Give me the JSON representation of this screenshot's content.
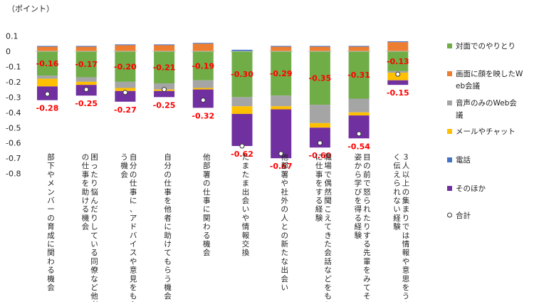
{
  "chart_data": {
    "type": "bar",
    "unit_label": "（ポイント）",
    "yticks": [
      "0.1",
      "0",
      "-0.1",
      "-0.2",
      "-0.3",
      "-0.4",
      "-0.5",
      "-0.6",
      "-0.7",
      "-0.8"
    ],
    "ylim": [
      -0.8,
      0.1
    ],
    "categories": [
      "部下やメンバーの育成に関わる機会",
      "困ったり悩んだりしている同僚など他者の仕事を助ける機会",
      "自分の仕事に、アドバイスや意見をもらう機会",
      "自分の仕事を他者に助けてもらう機会",
      "他部署の仕事に関わる機会",
      "たまたま出会いや情報交換",
      "他部署や社外の人との新たな出会い",
      "職場で偶然聞こえてきた会話などをもとに仕事をする経験",
      "目の前で怒られたりする先輩をみてその姿から学びを得る経験",
      "３人以上の集まりでは情報や意思をうまく伝えられない経験"
    ],
    "series": [
      {
        "name": "対面でのやりとり",
        "color": "#70ad47",
        "values": [
          -0.16,
          -0.17,
          -0.2,
          -0.21,
          -0.19,
          -0.3,
          -0.29,
          -0.35,
          -0.31,
          -0.13
        ],
        "labels": [
          "-0.16",
          "-0.17",
          "-0.20",
          "-0.21",
          "-0.19",
          "-0.30",
          "-0.29",
          "-0.35",
          "-0.31",
          "-0.13"
        ]
      },
      {
        "name": "画面に顔を映したWeb会議",
        "color": "#ed7d31",
        "values": [
          0.03,
          0.03,
          0.04,
          0.04,
          0.05,
          0.0,
          0.03,
          0.03,
          0.03,
          0.06
        ]
      },
      {
        "name": "音声のみのWeb会議",
        "color": "#a5a5a5",
        "values": [
          -0.02,
          -0.03,
          -0.04,
          -0.04,
          -0.05,
          -0.06,
          -0.07,
          -0.12,
          -0.09,
          -0.01
        ]
      },
      {
        "name": "メールやチャット",
        "color": "#ffc000",
        "values": [
          -0.05,
          -0.02,
          -0.02,
          -0.01,
          -0.01,
          -0.05,
          -0.02,
          -0.03,
          -0.02,
          -0.05
        ]
      },
      {
        "name": "電話",
        "color": "#4472c4",
        "values": [
          0.005,
          0.005,
          0.005,
          0.005,
          0.005,
          0.01,
          0.005,
          0.005,
          0.005,
          0.005
        ]
      },
      {
        "name": "そのほか",
        "color": "#7030a0",
        "values": [
          -0.09,
          -0.07,
          -0.07,
          -0.04,
          -0.12,
          -0.21,
          -0.32,
          -0.13,
          -0.15,
          -0.03
        ]
      }
    ],
    "totals": {
      "name": "合計",
      "values": [
        -0.28,
        -0.25,
        -0.27,
        -0.25,
        -0.32,
        -0.62,
        -0.67,
        -0.6,
        -0.54,
        -0.15
      ],
      "labels": [
        "-0.28",
        "-0.25",
        "-0.27",
        "-0.25",
        "-0.32",
        "-0.62",
        "-0.67",
        "-0.60",
        "-0.54",
        "-0.15"
      ]
    },
    "legend_position": "right",
    "label_color": "#ff0000",
    "grid": false
  }
}
